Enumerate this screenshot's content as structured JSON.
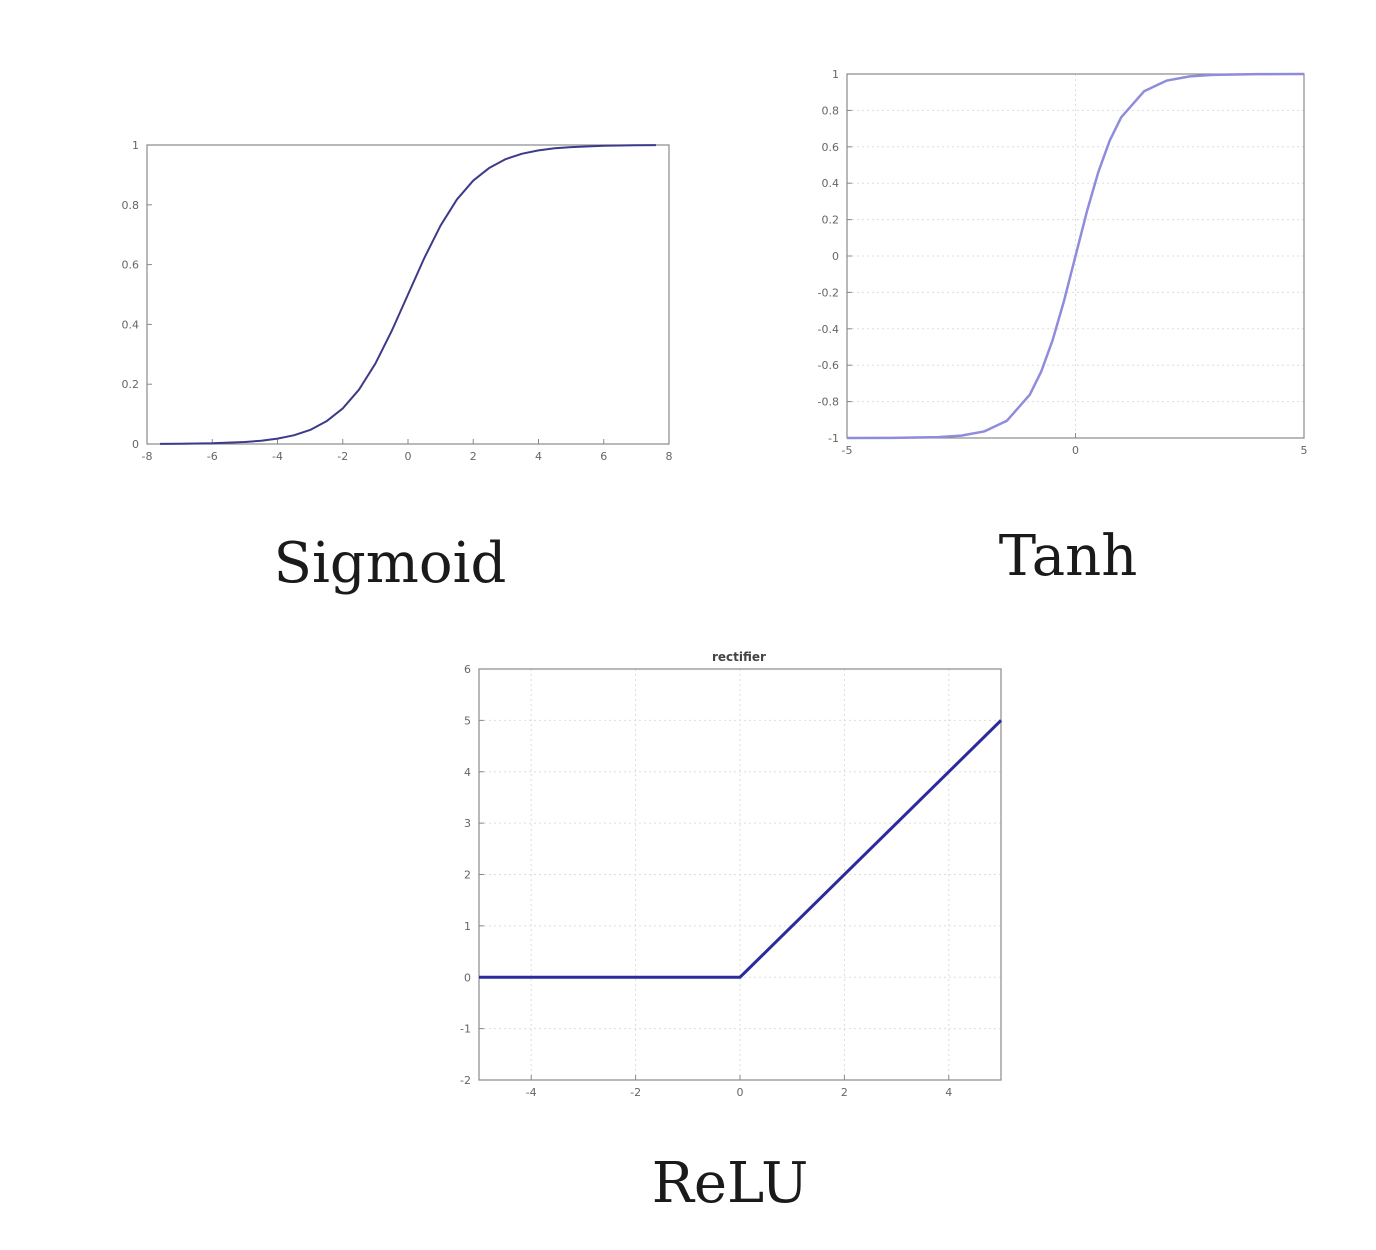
{
  "chart_data": [
    {
      "type": "line",
      "caption": "Sigmoid",
      "title": "",
      "xlabel": "",
      "ylabel": "",
      "xlim": [
        -8,
        8
      ],
      "ylim": [
        0,
        1
      ],
      "grid": false,
      "xticks": [
        -8,
        -6,
        -4,
        -2,
        0,
        2,
        4,
        6,
        8
      ],
      "yticks": [
        0,
        0.2,
        0.4,
        0.6,
        0.8,
        1
      ],
      "xtick_labels": [
        "-8",
        "-6",
        "-4",
        "-2",
        "0",
        "2",
        "4",
        "6",
        "8"
      ],
      "ytick_labels": [
        "0",
        "0.2",
        "0.4",
        "0.6",
        "0.8",
        "1"
      ],
      "color": "#3d3a8a",
      "series": [
        {
          "x": [
            -7.6,
            -7,
            -6,
            -5,
            -4.5,
            -4,
            -3.5,
            -3,
            -2.5,
            -2,
            -1.5,
            -1,
            -0.5,
            0,
            0.5,
            1,
            1.5,
            2,
            2.5,
            3,
            3.5,
            4,
            4.5,
            5,
            6,
            7,
            7.6
          ],
          "y": [
            0.0005,
            0.0009,
            0.0025,
            0.0067,
            0.011,
            0.018,
            0.029,
            0.047,
            0.076,
            0.119,
            0.182,
            0.269,
            0.378,
            0.5,
            0.622,
            0.731,
            0.818,
            0.881,
            0.924,
            0.953,
            0.971,
            0.982,
            0.989,
            0.993,
            0.9975,
            0.9991,
            0.9995
          ]
        }
      ]
    },
    {
      "type": "line",
      "caption": "Tanh",
      "title": "",
      "xlabel": "",
      "ylabel": "",
      "xlim": [
        -5,
        5
      ],
      "ylim": [
        -1,
        1
      ],
      "grid": true,
      "xticks": [
        -5,
        0,
        5
      ],
      "yticks": [
        -1,
        -0.8,
        -0.6,
        -0.4,
        -0.2,
        0,
        0.2,
        0.4,
        0.6,
        0.8,
        1
      ],
      "xtick_labels": [
        "-5",
        "0",
        "5"
      ],
      "ytick_labels": [
        "-1",
        "-0.8",
        "-0.6",
        "-0.4",
        "-0.2",
        "0",
        "0.2",
        "0.4",
        "0.6",
        "0.8",
        "1"
      ],
      "color": "#8f8cdc",
      "series": [
        {
          "x": [
            -5,
            -4,
            -3,
            -2.5,
            -2,
            -1.5,
            -1,
            -0.75,
            -0.5,
            -0.25,
            0,
            0.25,
            0.5,
            0.75,
            1,
            1.5,
            2,
            2.5,
            3,
            4,
            5
          ],
          "y": [
            -0.9999,
            -0.9993,
            -0.995,
            -0.987,
            -0.964,
            -0.905,
            -0.762,
            -0.635,
            -0.462,
            -0.245,
            0,
            0.245,
            0.462,
            0.635,
            0.762,
            0.905,
            0.964,
            0.987,
            0.995,
            0.9993,
            0.9999
          ]
        }
      ]
    },
    {
      "type": "line",
      "caption": "ReLU",
      "title": "rectifier",
      "xlabel": "",
      "ylabel": "",
      "xlim": [
        -5,
        5
      ],
      "ylim": [
        -2,
        6
      ],
      "grid": true,
      "xticks": [
        -4,
        -2,
        0,
        2,
        4
      ],
      "yticks": [
        -2,
        -1,
        0,
        1,
        2,
        3,
        4,
        5,
        6
      ],
      "xtick_labels": [
        "-4",
        "-2",
        "0",
        "2",
        "4"
      ],
      "ytick_labels": [
        "-2",
        "-1",
        "0",
        "1",
        "2",
        "3",
        "4",
        "5",
        "6"
      ],
      "color": "#2c2a9c",
      "series": [
        {
          "x": [
            -5,
            0,
            5
          ],
          "y": [
            0,
            0,
            5
          ]
        }
      ]
    }
  ]
}
